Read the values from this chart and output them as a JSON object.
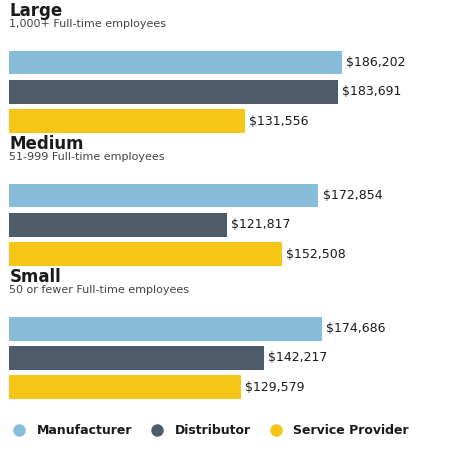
{
  "groups": [
    {
      "title": "Large",
      "subtitle": "1,000+ Full-time employees",
      "bars": [
        {
          "label": "Manufacturer",
          "value": 186202,
          "color": "#87BDD8"
        },
        {
          "label": "Distributor",
          "value": 183691,
          "color": "#4D5B6B"
        },
        {
          "label": "Service Provider",
          "value": 131556,
          "color": "#F5C518"
        }
      ]
    },
    {
      "title": "Medium",
      "subtitle": "51-999 Full-time employees",
      "bars": [
        {
          "label": "Manufacturer",
          "value": 172854,
          "color": "#87BDD8"
        },
        {
          "label": "Distributor",
          "value": 121817,
          "color": "#4D5B6B"
        },
        {
          "label": "Service Provider",
          "value": 152508,
          "color": "#F5C518"
        }
      ]
    },
    {
      "title": "Small",
      "subtitle": "50 or fewer Full-time employees",
      "bars": [
        {
          "label": "Manufacturer",
          "value": 174686,
          "color": "#87BDD8"
        },
        {
          "label": "Distributor",
          "value": 142217,
          "color": "#4D5B6B"
        },
        {
          "label": "Service Provider",
          "value": 129579,
          "color": "#F5C518"
        }
      ]
    }
  ],
  "max_value": 200000,
  "background_color": "#FFFFFF",
  "value_fontsize": 9,
  "title_fontsize": 12,
  "subtitle_fontsize": 8,
  "legend_labels": [
    "Manufacturer",
    "Distributor",
    "Service Provider"
  ],
  "legend_colors": [
    "#87BDD8",
    "#4D5B6B",
    "#F5C518"
  ]
}
